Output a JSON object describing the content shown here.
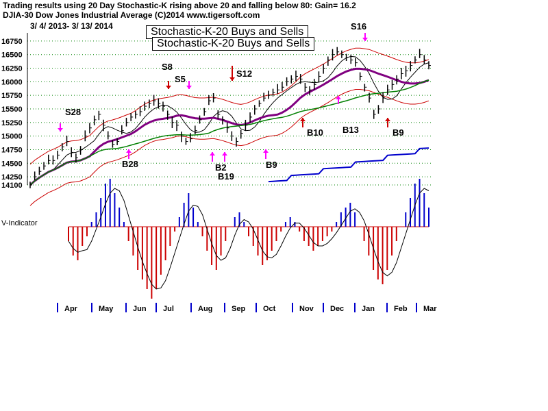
{
  "header": {
    "line1": "Trading results using  20 Day Stochastic-K rising above 20 and falling below 80: Gain= 16.2",
    "line2": "DJIA-30  Dow Jones Industrial Average   (C)2014 www.tigersoft.com",
    "date_range": "3/ 4/ 2013- 3/ 13/ 2014"
  },
  "titles": [
    "Stochastic-K-20 Buys and Sells",
    "Stochastic-K-20 Buys and Sells"
  ],
  "indicator_label": "V-Indicator",
  "colors": {
    "price": "#000000",
    "bands": "#cc0000",
    "ma_purple": "#800080",
    "ma_green": "#008000",
    "relative_strength": "#0000cc",
    "buy_arrow": "#ff00ff",
    "sell_arrow": "#ff00ff",
    "hist_pos": "#0000cc",
    "hist_neg": "#cc0000",
    "grid": "#008000"
  },
  "chart_data": [
    {
      "type": "line",
      "series": [
        {
          "values": [
            14100,
            14250,
            14350,
            14450,
            14550,
            14550,
            14650,
            14800,
            14900,
            14700,
            14600,
            14750,
            15000,
            15150,
            15300,
            15400,
            15200,
            15000,
            14850,
            14900,
            15100,
            15250,
            15350,
            15400,
            15450,
            15550,
            15600,
            15650,
            15600,
            15550,
            15400,
            15250,
            15200,
            15000,
            14900,
            14950,
            15100,
            15300,
            15450,
            15650,
            15700,
            15400,
            15300,
            15150,
            15000,
            14900,
            15050,
            15200,
            15350,
            15500,
            15600,
            15700,
            15750,
            15800,
            15850,
            15900,
            16000,
            16050,
            16100,
            16050,
            15900,
            15850,
            15950,
            16100,
            16250,
            16400,
            16500,
            16550,
            16500,
            16450,
            16400,
            16350,
            16100,
            15900,
            15700,
            15400,
            15500,
            15700,
            15850,
            15950,
            16050,
            16150,
            16200,
            16300,
            16400,
            16500,
            16400,
            16300
          ]
        }
      ],
      "ylim": [
        14100,
        16900
      ],
      "y_ticks": [
        "16750",
        "16500",
        "16250",
        "16000",
        "15750",
        "15500",
        "15250",
        "15000",
        "14750",
        "14500",
        "14250",
        "14100"
      ],
      "x_ticks": [
        "Apr",
        "May",
        "Jun",
        "Jul",
        "Aug",
        "Sep",
        "Oct",
        "Nov",
        "Dec",
        "Jan",
        "Feb",
        "Mar"
      ],
      "annotations": [
        "S28",
        "B28",
        "S8",
        "S5",
        "B2",
        "B19",
        "S12",
        "B9",
        "B10",
        "B13",
        "S16",
        "B9"
      ]
    },
    {
      "type": "bar",
      "series": [
        {
          "values": [
            -0.3,
            -0.6,
            -0.7,
            -0.4,
            -0.2,
            0.1,
            0.3,
            0.6,
            0.9,
            1.0,
            0.7,
            0.4,
            0.1,
            -0.3,
            -0.6,
            -0.9,
            -1.1,
            -1.3,
            -1.5,
            -1.3,
            -1.0,
            -0.7,
            -0.4,
            -0.1,
            0.2,
            0.5,
            0.7,
            0.4,
            0.1,
            -0.2,
            -0.5,
            -0.8,
            -0.9,
            -0.6,
            -0.3,
            0.0,
            0.2,
            0.3,
            0.1,
            -0.2,
            -0.4,
            -0.6,
            -0.8,
            -0.7,
            -0.5,
            -0.3,
            -0.1,
            0.1,
            0.2,
            0.1,
            -0.1,
            -0.3,
            -0.4,
            -0.5,
            -0.4,
            -0.3,
            -0.2,
            -0.1,
            0.1,
            0.3,
            0.4,
            0.5,
            0.3,
            0.0,
            -0.3,
            -0.6,
            -0.9,
            -1.1,
            -1.2,
            -0.9,
            -0.6,
            -0.3,
            0.0,
            0.3,
            0.6,
            0.9,
            1.0,
            0.7,
            0.4
          ]
        }
      ],
      "ylim": [
        -1.5,
        1.0
      ]
    }
  ]
}
